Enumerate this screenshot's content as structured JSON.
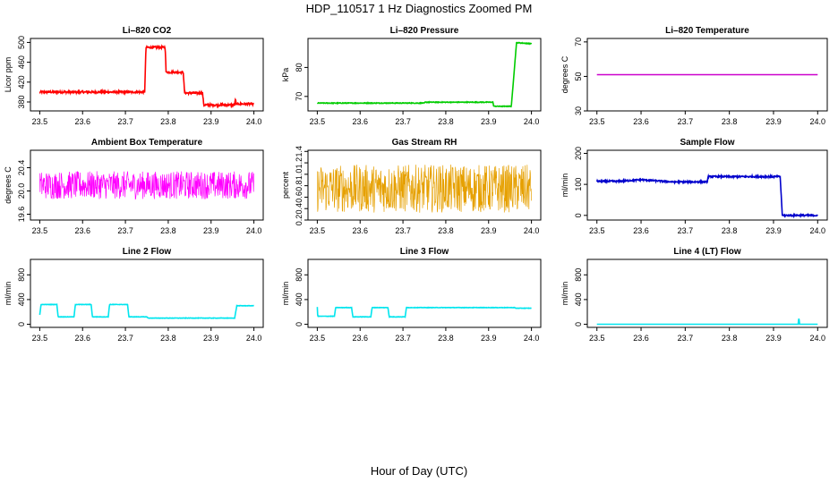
{
  "figure": {
    "title": "HDP_110517  1 Hz Diagnostics Zoomed PM",
    "xlabel": "Hour of Day (UTC)"
  },
  "chart_data": [
    {
      "type": "line",
      "title": "Li–820 CO2",
      "ylabel": "Licor ppm",
      "color": "#ff0000",
      "xlim": [
        23.5,
        24.0
      ],
      "ylim": [
        362,
        508
      ],
      "xticks": [
        23.5,
        23.6,
        23.7,
        23.8,
        23.9,
        24.0
      ],
      "xtick_labels": [
        "23.5",
        "23.6",
        "23.7",
        "23.8",
        "23.9",
        "24.0"
      ],
      "yticks": [
        380,
        420,
        460,
        500
      ],
      "ytick_labels": [
        "380",
        "420",
        "460",
        "500"
      ],
      "noise": 2,
      "series": [
        {
          "x": [
            23.5,
            23.745,
            23.748,
            23.793,
            23.795,
            23.835,
            23.838,
            23.88,
            23.883,
            23.955,
            23.957,
            23.958,
            23.96,
            24.0
          ],
          "y": [
            400,
            400,
            490,
            490,
            440,
            440,
            398,
            398,
            374,
            374,
            388,
            376,
            376,
            376
          ]
        }
      ]
    },
    {
      "type": "line",
      "title": "Li–820 Pressure",
      "ylabel": "kPa",
      "color": "#00cc00",
      "xlim": [
        23.5,
        24.0
      ],
      "ylim": [
        65,
        90
      ],
      "xticks": [
        23.5,
        23.6,
        23.7,
        23.8,
        23.9,
        24.0
      ],
      "xtick_labels": [
        "23.5",
        "23.6",
        "23.7",
        "23.8",
        "23.9",
        "24.0"
      ],
      "yticks": [
        70,
        80
      ],
      "ytick_labels": [
        "70",
        "80"
      ],
      "noise": 0.12,
      "series": [
        {
          "x": [
            23.5,
            23.75,
            23.752,
            23.91,
            23.912,
            23.953,
            23.965,
            23.97,
            24.0
          ],
          "y": [
            67.7,
            67.7,
            68.0,
            68.0,
            66.6,
            66.6,
            88.5,
            88.5,
            88.2
          ]
        }
      ]
    },
    {
      "type": "line",
      "title": "Li–820 Temperature",
      "ylabel": "degrees C",
      "color": "#cc00cc",
      "xlim": [
        23.5,
        24.0
      ],
      "ylim": [
        30,
        72
      ],
      "xticks": [
        23.5,
        23.6,
        23.7,
        23.8,
        23.9,
        24.0
      ],
      "xtick_labels": [
        "23.5",
        "23.6",
        "23.7",
        "23.8",
        "23.9",
        "24.0"
      ],
      "yticks": [
        30,
        50,
        70
      ],
      "ytick_labels": [
        "30",
        "50",
        "70"
      ],
      "noise": 0,
      "series": [
        {
          "x": [
            23.5,
            24.0
          ],
          "y": [
            51,
            51
          ]
        }
      ]
    },
    {
      "type": "line",
      "title": "Ambient Box Temperature",
      "ylabel": "degrees C",
      "color": "#ff00ff",
      "xlim": [
        23.5,
        24.0
      ],
      "ylim": [
        19.5,
        20.7
      ],
      "xticks": [
        23.5,
        23.6,
        23.7,
        23.8,
        23.9,
        24.0
      ],
      "xtick_labels": [
        "23.5",
        "23.6",
        "23.7",
        "23.8",
        "23.9",
        "24.0"
      ],
      "yticks": [
        19.6,
        20.0,
        20.4
      ],
      "ytick_labels": [
        "19.6",
        "20.0",
        "20.4"
      ],
      "noise": 0.24,
      "series": [
        {
          "x": [
            23.5,
            24.0
          ],
          "y": [
            20.1,
            20.1
          ]
        }
      ]
    },
    {
      "type": "line",
      "title": "Gas Stream RH",
      "ylabel": "percent",
      "color": "#e6a000",
      "xlim": [
        23.5,
        24.0
      ],
      "ylim": [
        0.2,
        1.42
      ],
      "xticks": [
        23.5,
        23.6,
        23.7,
        23.8,
        23.9,
        24.0
      ],
      "xtick_labels": [
        "23.5",
        "23.6",
        "23.7",
        "23.8",
        "23.9",
        "24.0"
      ],
      "yticks": [
        0.2,
        0.4,
        0.6,
        0.8,
        1.0,
        1.2,
        1.4
      ],
      "ytick_labels": [
        "0.2",
        "0.4",
        "0.6",
        "0.8",
        "1.0",
        "1.2",
        "1.4"
      ],
      "noise": 0.42,
      "series": [
        {
          "x": [
            23.5,
            24.0
          ],
          "y": [
            0.75,
            0.75
          ]
        }
      ]
    },
    {
      "type": "line",
      "title": "Sample Flow",
      "ylabel": "ml/min",
      "color": "#0000cc",
      "xlim": [
        23.5,
        24.0
      ],
      "ylim": [
        -15,
        210
      ],
      "xticks": [
        23.5,
        23.6,
        23.7,
        23.8,
        23.9,
        24.0
      ],
      "xtick_labels": [
        "23.5",
        "23.6",
        "23.7",
        "23.8",
        "23.9",
        "24.0"
      ],
      "yticks": [
        0,
        100,
        200
      ],
      "ytick_labels": [
        "0",
        "100",
        "200"
      ],
      "noise": 2.5,
      "series": [
        {
          "x": [
            23.5,
            23.55,
            23.6,
            23.67,
            23.75,
            23.752,
            23.915,
            23.92,
            23.93,
            24.0
          ],
          "y": [
            110,
            110,
            115,
            108,
            108,
            125,
            125,
            0,
            0,
            0
          ]
        }
      ]
    },
    {
      "type": "line",
      "title": "Line 2 Flow",
      "ylabel": "ml/min",
      "color": "#00e5ee",
      "xlim": [
        23.5,
        24.0
      ],
      "ylim": [
        -50,
        1050
      ],
      "xticks": [
        23.5,
        23.6,
        23.7,
        23.8,
        23.9,
        24.0
      ],
      "xtick_labels": [
        "23.5",
        "23.6",
        "23.7",
        "23.8",
        "23.9",
        "24.0"
      ],
      "yticks": [
        0,
        400,
        800
      ],
      "ytick_labels": [
        "0",
        "400",
        "800"
      ],
      "noise": 3,
      "series": [
        {
          "x": [
            23.5,
            23.503,
            23.54,
            23.543,
            23.58,
            23.583,
            23.62,
            23.623,
            23.66,
            23.663,
            23.705,
            23.708,
            23.75,
            23.753,
            23.955,
            23.96,
            24.0
          ],
          "y": [
            150,
            320,
            320,
            120,
            120,
            320,
            320,
            120,
            120,
            320,
            320,
            120,
            120,
            100,
            100,
            300,
            300
          ]
        }
      ]
    },
    {
      "type": "line",
      "title": "Line 3 Flow",
      "ylabel": "ml/min",
      "color": "#00e5ee",
      "xlim": [
        23.5,
        24.0
      ],
      "ylim": [
        -50,
        1050
      ],
      "xticks": [
        23.5,
        23.6,
        23.7,
        23.8,
        23.9,
        24.0
      ],
      "xtick_labels": [
        "23.5",
        "23.6",
        "23.7",
        "23.8",
        "23.9",
        "24.0"
      ],
      "yticks": [
        0,
        400,
        800
      ],
      "ytick_labels": [
        "0",
        "400",
        "800"
      ],
      "noise": 3,
      "series": [
        {
          "x": [
            23.5,
            23.501,
            23.503,
            23.54,
            23.543,
            23.58,
            23.583,
            23.625,
            23.628,
            23.665,
            23.668,
            23.705,
            23.708,
            23.96,
            23.963,
            24.0
          ],
          "y": [
            280,
            130,
            130,
            130,
            270,
            270,
            120,
            120,
            270,
            270,
            120,
            120,
            270,
            270,
            260,
            260
          ]
        }
      ]
    },
    {
      "type": "line",
      "title": "Line 4 (LT) Flow",
      "ylabel": "ml/min",
      "color": "#00e5ee",
      "xlim": [
        23.5,
        24.0
      ],
      "ylim": [
        -50,
        1050
      ],
      "xticks": [
        23.5,
        23.6,
        23.7,
        23.8,
        23.9,
        24.0
      ],
      "xtick_labels": [
        "23.5",
        "23.6",
        "23.7",
        "23.8",
        "23.9",
        "24.0"
      ],
      "yticks": [
        0,
        400,
        800
      ],
      "ytick_labels": [
        "0",
        "400",
        "800"
      ],
      "noise": 0,
      "series": [
        {
          "x": [
            23.5,
            23.956,
            23.957,
            23.958,
            23.959,
            24.0
          ],
          "y": [
            0,
            0,
            90,
            90,
            0,
            0
          ]
        }
      ]
    }
  ]
}
